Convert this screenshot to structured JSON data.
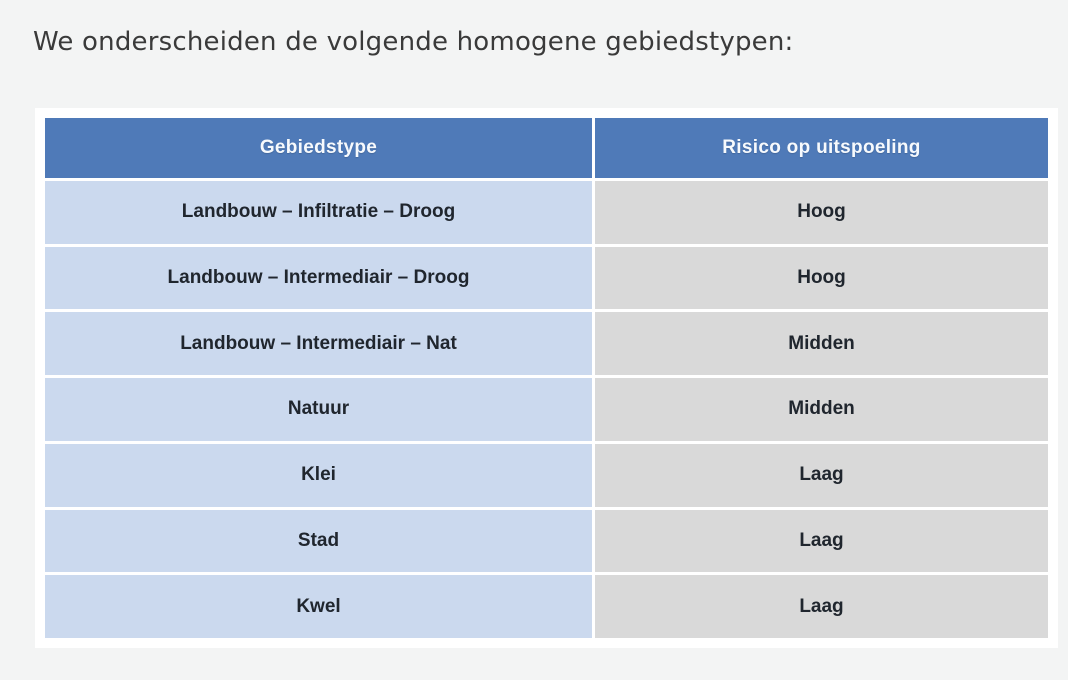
{
  "page": {
    "title": "We onderscheiden de volgende homogene gebiedstypen:",
    "background_color": "#f3f4f4",
    "panel_color": "#ffffff"
  },
  "table": {
    "columns": [
      {
        "label": "Gebiedstype"
      },
      {
        "label": "Risico op uitspoeling"
      }
    ],
    "rows": [
      {
        "gebiedstype": "Landbouw – Infiltratie – Droog",
        "risico": "Hoog"
      },
      {
        "gebiedstype": "Landbouw – Intermediair – Droog",
        "risico": "Hoog"
      },
      {
        "gebiedstype": "Landbouw – Intermediair – Nat",
        "risico": "Midden"
      },
      {
        "gebiedstype": "Natuur",
        "risico": "Midden"
      },
      {
        "gebiedstype": "Klei",
        "risico": "Laag"
      },
      {
        "gebiedstype": "Stad",
        "risico": "Laag"
      },
      {
        "gebiedstype": "Kwel",
        "risico": "Laag"
      }
    ],
    "colors": {
      "header_bg": "#4f7ab8",
      "header_text": "#ffffff",
      "gebiedstype_cell_bg": "#cbd9ee",
      "risico_cell_bg": "#d9d9d9",
      "cell_text": "#20262e"
    }
  }
}
